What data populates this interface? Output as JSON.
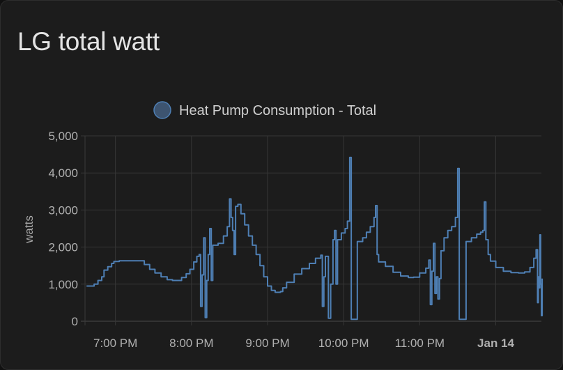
{
  "card": {
    "title": "LG total watt"
  },
  "chart_data": {
    "type": "line",
    "title": "LG total watt",
    "ylabel": "watts",
    "xlabel": "",
    "ylim": [
      0,
      5000
    ],
    "yticks": [
      0,
      1000,
      2000,
      3000,
      4000,
      5000
    ],
    "ytick_labels": [
      "0",
      "1,000",
      "2,000",
      "3,000",
      "4,000",
      "5,000"
    ],
    "xlim_hours": [
      18.6,
      24.6
    ],
    "xticks": [
      {
        "hour": 19.0,
        "label": "7:00 PM",
        "bold": false
      },
      {
        "hour": 20.0,
        "label": "8:00 PM",
        "bold": false
      },
      {
        "hour": 21.0,
        "label": "9:00 PM",
        "bold": false
      },
      {
        "hour": 22.0,
        "label": "10:00 PM",
        "bold": false
      },
      {
        "hour": 23.0,
        "label": "11:00 PM",
        "bold": false
      },
      {
        "hour": 24.0,
        "label": "Jan 14",
        "bold": true
      }
    ],
    "grid": true,
    "legend_position": "top-center",
    "series": [
      {
        "name": "Heat Pump Consumption - Total",
        "color": "#4e7fb4",
        "line": "step",
        "points": [
          [
            18.62,
            950
          ],
          [
            18.67,
            950
          ],
          [
            18.72,
            1000
          ],
          [
            18.77,
            1100
          ],
          [
            18.82,
            1200
          ],
          [
            18.85,
            1380
          ],
          [
            18.9,
            1470
          ],
          [
            18.95,
            1560
          ],
          [
            18.98,
            1610
          ],
          [
            19.05,
            1630
          ],
          [
            19.2,
            1630
          ],
          [
            19.32,
            1630
          ],
          [
            19.38,
            1530
          ],
          [
            19.45,
            1400
          ],
          [
            19.52,
            1300
          ],
          [
            19.6,
            1200
          ],
          [
            19.68,
            1120
          ],
          [
            19.75,
            1100
          ],
          [
            19.83,
            1100
          ],
          [
            19.87,
            1180
          ],
          [
            19.93,
            1280
          ],
          [
            19.98,
            1400
          ],
          [
            20.03,
            1600
          ],
          [
            20.07,
            1750
          ],
          [
            20.1,
            1800
          ],
          [
            20.12,
            400
          ],
          [
            20.14,
            1250
          ],
          [
            20.16,
            2250
          ],
          [
            20.18,
            100
          ],
          [
            20.2,
            1100
          ],
          [
            20.22,
            1800
          ],
          [
            20.24,
            2500
          ],
          [
            20.26,
            1100
          ],
          [
            20.28,
            2050
          ],
          [
            20.35,
            2100
          ],
          [
            20.42,
            2300
          ],
          [
            20.47,
            2550
          ],
          [
            20.5,
            3300
          ],
          [
            20.52,
            2800
          ],
          [
            20.54,
            2450
          ],
          [
            20.56,
            1800
          ],
          [
            20.58,
            3100
          ],
          [
            20.61,
            3150
          ],
          [
            20.65,
            2900
          ],
          [
            20.7,
            2600
          ],
          [
            20.75,
            2300
          ],
          [
            20.8,
            2050
          ],
          [
            20.85,
            1800
          ],
          [
            20.9,
            1500
          ],
          [
            20.95,
            1200
          ],
          [
            21.0,
            950
          ],
          [
            21.05,
            830
          ],
          [
            21.1,
            780
          ],
          [
            21.17,
            800
          ],
          [
            21.2,
            900
          ],
          [
            21.25,
            1050
          ],
          [
            21.35,
            1270
          ],
          [
            21.45,
            1420
          ],
          [
            21.55,
            1560
          ],
          [
            21.63,
            1700
          ],
          [
            21.7,
            1780
          ],
          [
            21.72,
            400
          ],
          [
            21.74,
            1200
          ],
          [
            21.76,
            1750
          ],
          [
            21.8,
            80
          ],
          [
            21.83,
            1000
          ],
          [
            21.86,
            2200
          ],
          [
            21.88,
            2450
          ],
          [
            21.9,
            1000
          ],
          [
            21.92,
            2200
          ],
          [
            21.97,
            2380
          ],
          [
            22.02,
            2500
          ],
          [
            22.05,
            2700
          ],
          [
            22.08,
            4420
          ],
          [
            22.1,
            50
          ],
          [
            22.16,
            50
          ],
          [
            22.18,
            2150
          ],
          [
            22.25,
            2250
          ],
          [
            22.3,
            2400
          ],
          [
            22.35,
            2550
          ],
          [
            22.4,
            2800
          ],
          [
            22.42,
            3120
          ],
          [
            22.44,
            1800
          ],
          [
            22.46,
            1600
          ],
          [
            22.55,
            1480
          ],
          [
            22.65,
            1320
          ],
          [
            22.75,
            1220
          ],
          [
            22.85,
            1180
          ],
          [
            22.92,
            1190
          ],
          [
            23.0,
            1300
          ],
          [
            23.08,
            1430
          ],
          [
            23.12,
            1650
          ],
          [
            23.14,
            450
          ],
          [
            23.16,
            1350
          ],
          [
            23.18,
            2100
          ],
          [
            23.2,
            750
          ],
          [
            23.22,
            1200
          ],
          [
            23.24,
            600
          ],
          [
            23.26,
            1150
          ],
          [
            23.28,
            1900
          ],
          [
            23.32,
            2250
          ],
          [
            23.37,
            2450
          ],
          [
            23.42,
            2550
          ],
          [
            23.47,
            2800
          ],
          [
            23.5,
            4120
          ],
          [
            23.52,
            50
          ],
          [
            23.58,
            50
          ],
          [
            23.61,
            2150
          ],
          [
            23.68,
            2250
          ],
          [
            23.75,
            2350
          ],
          [
            23.8,
            2400
          ],
          [
            23.83,
            2450
          ],
          [
            23.85,
            3220
          ],
          [
            23.87,
            2200
          ],
          [
            23.9,
            1800
          ],
          [
            23.93,
            1620
          ],
          [
            24.0,
            1450
          ],
          [
            24.1,
            1350
          ],
          [
            24.2,
            1310
          ],
          [
            24.3,
            1300
          ],
          [
            24.38,
            1330
          ],
          [
            24.45,
            1450
          ],
          [
            24.5,
            1700
          ],
          [
            24.53,
            1930
          ],
          [
            24.55,
            500
          ],
          [
            24.56,
            1200
          ],
          [
            24.57,
            900
          ],
          [
            24.58,
            2330
          ],
          [
            24.59,
            1000
          ],
          [
            24.6,
            150
          ],
          [
            24.61,
            1150
          ]
        ]
      }
    ]
  }
}
